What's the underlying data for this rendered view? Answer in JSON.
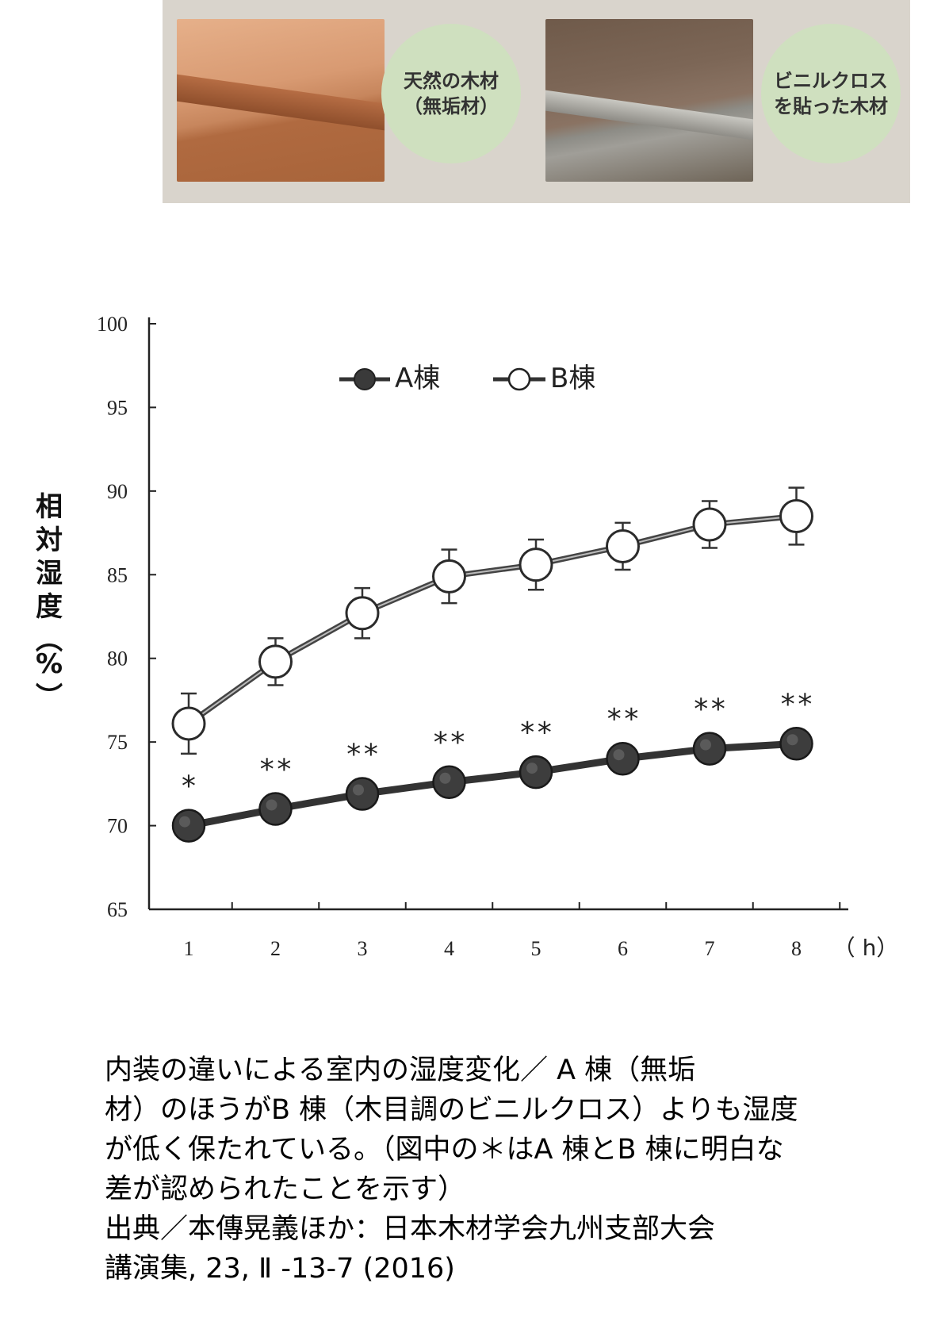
{
  "photo": {
    "natural_label_1": "天然の木材",
    "natural_label_2": "（無垢材）",
    "vinyl_label_1": "ビニルクロス",
    "vinyl_label_2": "を貼った木材"
  },
  "chart_data": {
    "type": "line",
    "title": "",
    "xlabel": "（ h）",
    "ylabel": "相対湿度（%）",
    "ylim": [
      65,
      100
    ],
    "yticks": [
      65,
      70,
      75,
      80,
      85,
      90,
      95,
      100
    ],
    "x": [
      1,
      2,
      3,
      4,
      5,
      6,
      7,
      8
    ],
    "legend_position": "top",
    "grid": false,
    "series": [
      {
        "name": "A棟",
        "marker": "filled-circle",
        "color": "#3a3a3a",
        "values": [
          70.0,
          71.0,
          71.9,
          72.6,
          73.2,
          74.0,
          74.6,
          74.9
        ],
        "significance": [
          "*",
          "**",
          "**",
          "**",
          "**",
          "**",
          "**",
          "**"
        ]
      },
      {
        "name": "B棟",
        "marker": "open-circle",
        "color": "#3a3a3a",
        "values": [
          76.1,
          79.8,
          82.7,
          84.9,
          85.6,
          86.7,
          88.0,
          88.5
        ],
        "error": [
          1.8,
          1.4,
          1.5,
          1.6,
          1.5,
          1.4,
          1.4,
          1.7
        ]
      }
    ]
  },
  "caption": {
    "line1": "内装の違いによる室内の湿度変化／ A 棟（無垢",
    "line2": "材）のほうがB 棟（木目調のビニルクロス）よりも湿度",
    "line3": "が低く保たれている。（図中の＊はA 棟とB 棟に明白な",
    "line4": "差が認められたことを示す）",
    "line5": "出典／本傳晃義ほか：日本木材学会九州支部大会",
    "line6": "講演集, 23, Ⅱ -13-7 (2016)"
  }
}
